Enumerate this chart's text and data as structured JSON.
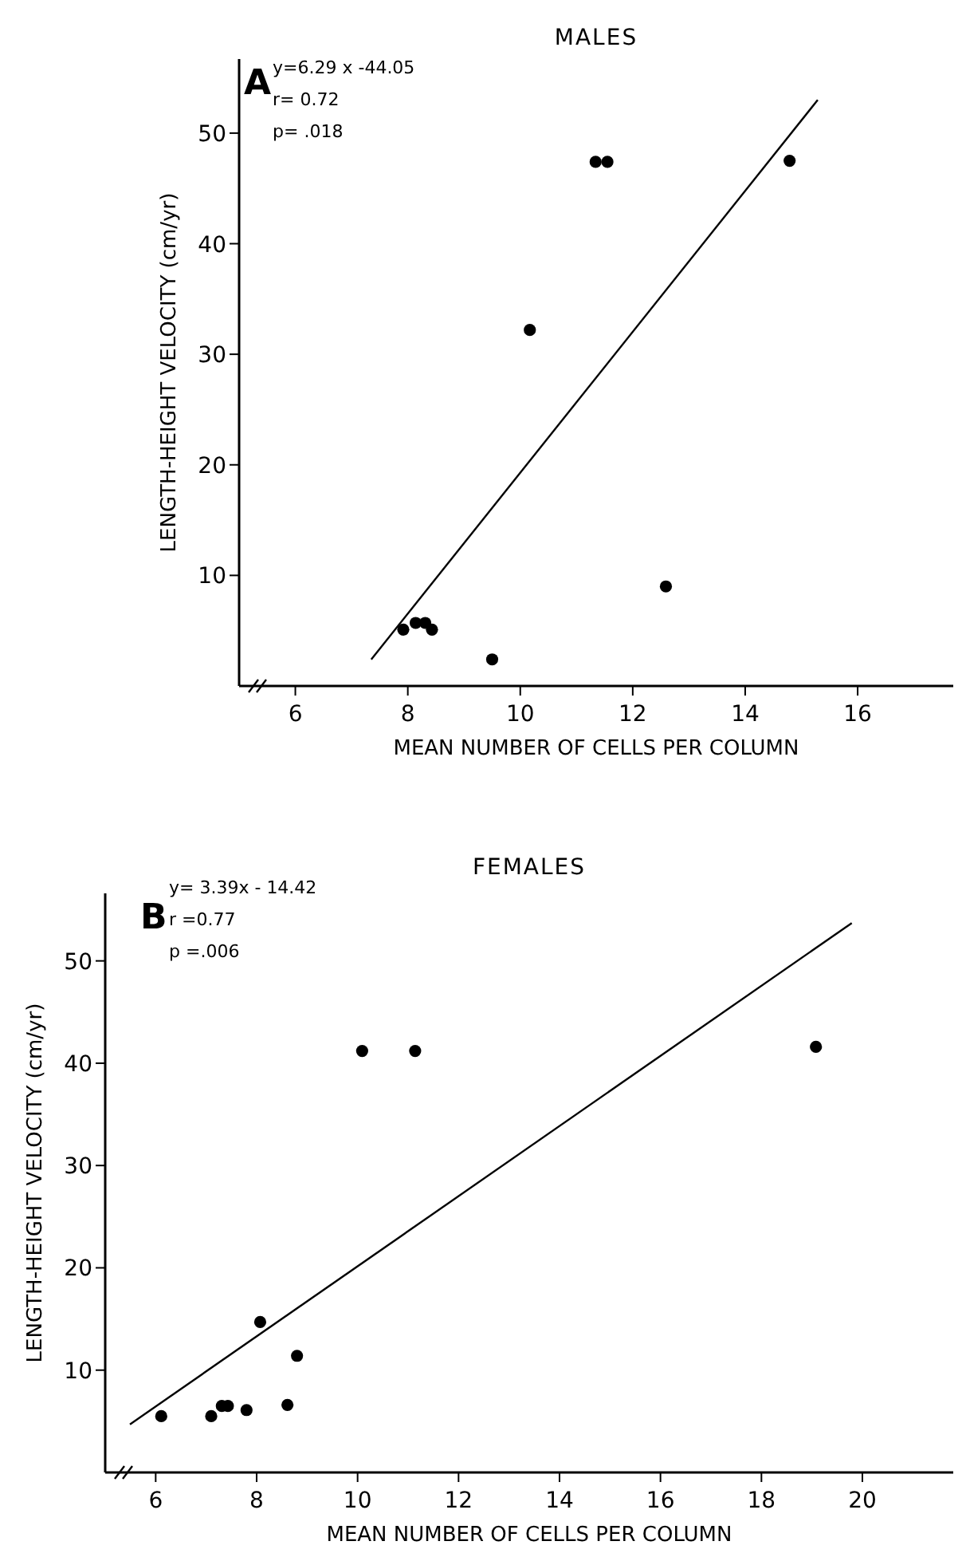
{
  "chart_data": [
    {
      "type": "scatter",
      "title": "MALES",
      "xlabel": "MEAN NUMBER OF CELLS PER COLUMN",
      "ylabel": "LENGTH-HEIGHT VELOCITY (cm/yr)",
      "annotations": [
        "A",
        "y=6.29 x -44.05",
        "r= 0.72",
        "p=  .018"
      ],
      "xlim": [
        5,
        17.7
      ],
      "ylim": [
        0,
        56.7
      ],
      "xticks": [
        6,
        8,
        10,
        12,
        14,
        16
      ],
      "yticks": [
        10,
        20,
        30,
        40,
        50
      ],
      "grid": false,
      "series": [
        {
          "marker": "circle",
          "color": "#000000",
          "x": [
            7.92,
            8.14,
            8.31,
            8.43,
            9.5,
            10.17,
            11.34,
            11.55,
            14.79,
            12.59
          ],
          "values": [
            5.1,
            5.7,
            5.7,
            5.1,
            2.4,
            32.2,
            47.4,
            47.4,
            47.5,
            9.0
          ]
        },
        {
          "type": "line",
          "color": "#000000",
          "line_style": "solid",
          "x": [
            7.35,
            15.29
          ],
          "values": [
            2.4,
            53.0
          ]
        }
      ]
    },
    {
      "type": "scatter",
      "title": "FEMALES",
      "xlabel": "MEAN NUMBER OF CELLS PER COLUMN",
      "ylabel": "LENGTH-HEIGHT VELOCITY (cm/yr)",
      "annotations": [
        "B",
        "y= 3.39x - 14.42",
        "r =0.77",
        "p =.006"
      ],
      "xlim": [
        5,
        21.8
      ],
      "ylim": [
        0,
        56.6
      ],
      "xticks": [
        6,
        8,
        10,
        12,
        14,
        16,
        18,
        20
      ],
      "yticks": [
        10,
        20,
        30,
        40,
        50
      ],
      "grid": false,
      "series": [
        {
          "marker": "circle",
          "color": "#000000",
          "x": [
            6.11,
            7.1,
            7.31,
            7.43,
            7.8,
            8.07,
            8.61,
            8.8,
            10.09,
            11.14,
            19.08
          ],
          "values": [
            5.5,
            5.5,
            6.5,
            6.5,
            6.1,
            14.7,
            6.6,
            11.4,
            41.2,
            41.2,
            41.6
          ]
        },
        {
          "type": "line",
          "color": "#000000",
          "line_style": "solid",
          "x": [
            5.49,
            19.79
          ],
          "values": [
            4.7,
            53.7
          ]
        }
      ]
    }
  ]
}
